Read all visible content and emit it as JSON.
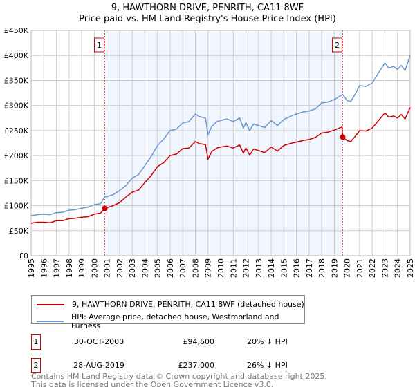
{
  "chart_data": {
    "type": "line",
    "title": "9, HAWTHORN DRIVE, PENRITH, CA11 8WF",
    "subtitle": "Price paid vs. HM Land Registry's House Price Index (HPI)",
    "xlabel": "",
    "ylabel": "",
    "xlim": [
      1995,
      2025
    ],
    "ylim": [
      0,
      450000
    ],
    "grid": true,
    "y_ticks": [
      0,
      50000,
      100000,
      150000,
      200000,
      250000,
      300000,
      350000,
      400000,
      450000
    ],
    "y_tick_labels": [
      "£0",
      "£50K",
      "£100K",
      "£150K",
      "£200K",
      "£250K",
      "£300K",
      "£350K",
      "£400K",
      "£450K"
    ],
    "x_ticks": [
      "1995",
      "1996",
      "1997",
      "1998",
      "1999",
      "2000",
      "2001",
      "2002",
      "2003",
      "2004",
      "2005",
      "2006",
      "2007",
      "2008",
      "2009",
      "2010",
      "2011",
      "2012",
      "2013",
      "2014",
      "2015",
      "2016",
      "2017",
      "2018",
      "2019",
      "2020",
      "2021",
      "2022",
      "2023",
      "2024",
      "2025"
    ],
    "shaded_range": [
      2000.83,
      2019.66
    ],
    "series": [
      {
        "name": "9, HAWTHORN DRIVE, PENRITH, CA11 8WF (detached house)",
        "color": "#cc0000",
        "x": [
          1995,
          1995.5,
          1996,
          1996.5,
          1997,
          1997.5,
          1998,
          1998.5,
          1999,
          1999.5,
          2000,
          2000.5,
          2000.83,
          2001,
          2001.5,
          2002,
          2002.5,
          2003,
          2003.5,
          2004,
          2004.5,
          2005,
          2005.5,
          2006,
          2006.5,
          2007,
          2007.5,
          2008,
          2008.3,
          2008.8,
          2009,
          2009.3,
          2009.7,
          2010,
          2010.5,
          2011,
          2011.5,
          2011.8,
          2012,
          2012.3,
          2012.6,
          2013,
          2013.5,
          2014,
          2014.5,
          2015,
          2015.5,
          2016,
          2016.5,
          2017,
          2017.5,
          2018,
          2018.5,
          2019,
          2019.6,
          2019.66,
          2020,
          2020.3,
          2020.7,
          2021,
          2021.5,
          2022,
          2022.5,
          2023,
          2023.3,
          2023.7,
          2024,
          2024.3,
          2024.6,
          2025
        ],
        "y": [
          65000,
          67000,
          67000,
          66000,
          70000,
          70000,
          74000,
          75000,
          77000,
          78000,
          83000,
          85000,
          94600,
          96000,
          100000,
          106000,
          117000,
          127000,
          131000,
          146000,
          160000,
          178000,
          186000,
          200000,
          203000,
          214000,
          215000,
          228000,
          224000,
          222000,
          193000,
          208000,
          215000,
          217000,
          219000,
          215000,
          221000,
          205000,
          215000,
          201000,
          213000,
          210000,
          206000,
          217000,
          209000,
          220000,
          224000,
          227000,
          230000,
          232000,
          236000,
          245000,
          247000,
          251000,
          257000,
          237000,
          230000,
          228000,
          240000,
          250000,
          249000,
          255000,
          270000,
          285000,
          277000,
          279000,
          275000,
          282000,
          273000,
          296000
        ]
      },
      {
        "name": "HPI: Average price, detached house, Westmorland and Furness",
        "color": "#6a96d0",
        "x": [
          1995,
          1995.5,
          1996,
          1996.5,
          1997,
          1997.5,
          1998,
          1998.5,
          1999,
          1999.5,
          2000,
          2000.5,
          2000.83,
          2001,
          2001.5,
          2002,
          2002.5,
          2003,
          2003.5,
          2004,
          2004.5,
          2005,
          2005.5,
          2006,
          2006.5,
          2007,
          2007.5,
          2008,
          2008.3,
          2008.8,
          2009,
          2009.3,
          2009.7,
          2010,
          2010.5,
          2011,
          2011.5,
          2011.8,
          2012,
          2012.3,
          2012.6,
          2013,
          2013.5,
          2014,
          2014.5,
          2015,
          2015.5,
          2016,
          2016.5,
          2017,
          2017.5,
          2018,
          2018.5,
          2019,
          2019.66,
          2020,
          2020.3,
          2020.7,
          2021,
          2021.5,
          2022,
          2022.5,
          2023,
          2023.3,
          2023.7,
          2024,
          2024.3,
          2024.6,
          2025
        ],
        "y": [
          80000,
          82000,
          83000,
          82000,
          86000,
          87000,
          91000,
          92000,
          95000,
          97000,
          102000,
          104000,
          118000,
          118000,
          122000,
          130000,
          140000,
          155000,
          162000,
          180000,
          198000,
          220000,
          233000,
          250000,
          253000,
          265000,
          268000,
          283000,
          278000,
          275000,
          242000,
          258000,
          268000,
          270000,
          273000,
          268000,
          275000,
          255000,
          266000,
          250000,
          263000,
          260000,
          256000,
          270000,
          260000,
          272000,
          278000,
          283000,
          287000,
          289000,
          293000,
          305000,
          307000,
          312000,
          322000,
          310000,
          308000,
          325000,
          340000,
          338000,
          345000,
          365000,
          385000,
          375000,
          378000,
          372000,
          380000,
          370000,
          400000
        ]
      }
    ],
    "annotations": [
      {
        "label": "1",
        "x": 2000.83,
        "y": 94600
      },
      {
        "label": "2",
        "x": 2019.66,
        "y": 237000
      }
    ]
  },
  "legend": {
    "property": "9, HAWTHORN DRIVE, PENRITH, CA11 8WF (detached house)",
    "hpi": "HPI: Average price, detached house, Westmorland and Furness"
  },
  "sales": [
    {
      "num": "1",
      "date": "30-OCT-2000",
      "price": "£94,600",
      "hpi": "20% ↓ HPI"
    },
    {
      "num": "2",
      "date": "28-AUG-2019",
      "price": "£237,000",
      "hpi": "26% ↓ HPI"
    }
  ],
  "footer": {
    "line1": "Contains HM Land Registry data © Crown copyright and database right 2025.",
    "line2": "This data is licensed under the Open Government Licence v3.0."
  }
}
